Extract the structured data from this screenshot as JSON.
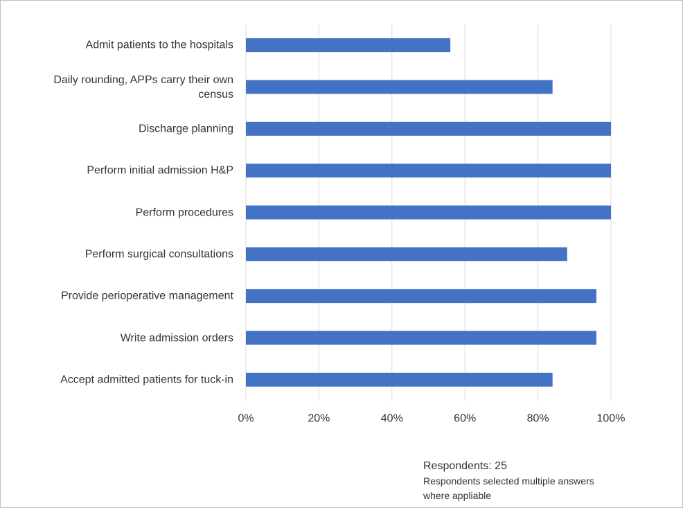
{
  "chart_data": {
    "type": "bar",
    "orientation": "horizontal",
    "categories": [
      "Admit patients to the hospitals",
      "Daily rounding, APPs carry their own census",
      "Discharge planning",
      "Perform initial admission H&P",
      "Perform procedures",
      "Perform surgical consultations",
      "Provide perioperative management",
      "Write admission orders",
      "Accept admitted patients for tuck-in"
    ],
    "values": [
      56,
      84,
      100,
      100,
      100,
      88,
      96,
      96,
      84
    ],
    "color": "#4472c4",
    "xlim": [
      0,
      100
    ],
    "xticks": [
      {
        "value": 0,
        "label": "0%"
      },
      {
        "value": 20,
        "label": "20%"
      },
      {
        "value": 40,
        "label": "40%"
      },
      {
        "value": 60,
        "label": "60%"
      },
      {
        "value": 80,
        "label": "80%"
      },
      {
        "value": 100,
        "label": "100%"
      }
    ],
    "grid": true,
    "annotations": [
      "Respondents: 25",
      "Respondents selected multiple answers where appliable"
    ]
  }
}
